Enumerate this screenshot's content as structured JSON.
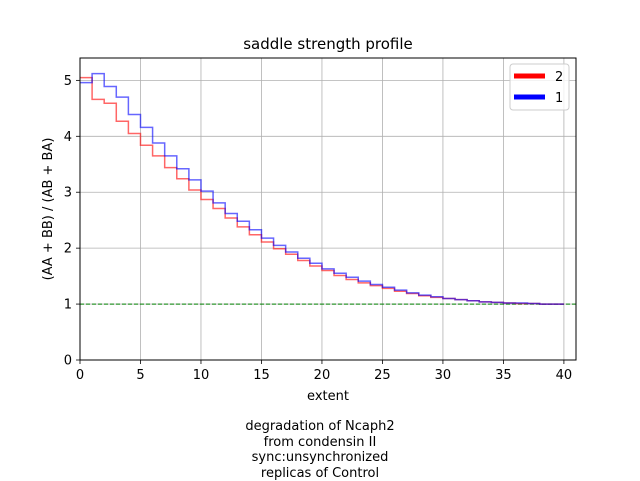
{
  "chart_data": {
    "type": "line",
    "drawstyle": "steps",
    "title": "saddle strength profile",
    "xlabel": "extent",
    "ylabel": "(AA + BB) / (AB + BA)",
    "xlim": [
      0,
      41
    ],
    "ylim": [
      0,
      5.4
    ],
    "xticks": [
      0,
      5,
      10,
      15,
      20,
      25,
      30,
      35,
      40
    ],
    "yticks": [
      0,
      1,
      2,
      3,
      4,
      5
    ],
    "grid": true,
    "legend_position": "top-right",
    "reference_line": {
      "y": 1,
      "color": "#008000",
      "style": "dashed"
    },
    "x": [
      0,
      1,
      2,
      3,
      4,
      5,
      6,
      7,
      8,
      9,
      10,
      11,
      12,
      13,
      14,
      15,
      16,
      17,
      18,
      19,
      20,
      21,
      22,
      23,
      24,
      25,
      26,
      27,
      28,
      29,
      30,
      31,
      32,
      33,
      34,
      35,
      36,
      37,
      38,
      39
    ],
    "series": [
      {
        "name": "2",
        "color": "#ff0000",
        "values": [
          5.05,
          4.66,
          4.59,
          4.27,
          4.05,
          3.84,
          3.65,
          3.44,
          3.24,
          3.04,
          2.87,
          2.71,
          2.54,
          2.38,
          2.24,
          2.11,
          1.99,
          1.89,
          1.78,
          1.68,
          1.6,
          1.51,
          1.44,
          1.38,
          1.33,
          1.28,
          1.23,
          1.19,
          1.15,
          1.12,
          1.1,
          1.08,
          1.06,
          1.04,
          1.03,
          1.02,
          1.01,
          1.01,
          1.0,
          1.0
        ]
      },
      {
        "name": "1",
        "color": "#0000ff",
        "values": [
          4.96,
          5.12,
          4.89,
          4.7,
          4.39,
          4.16,
          3.88,
          3.65,
          3.42,
          3.22,
          3.02,
          2.81,
          2.62,
          2.48,
          2.33,
          2.18,
          2.05,
          1.93,
          1.82,
          1.73,
          1.63,
          1.55,
          1.48,
          1.41,
          1.35,
          1.3,
          1.25,
          1.2,
          1.16,
          1.13,
          1.1,
          1.08,
          1.06,
          1.04,
          1.03,
          1.02,
          1.02,
          1.01,
          1.0,
          1.0
        ]
      }
    ]
  },
  "caption": {
    "lines": [
      "degradation of Ncaph2",
      "from condensin II",
      "sync:unsynchronized",
      "replicas of Control"
    ]
  }
}
